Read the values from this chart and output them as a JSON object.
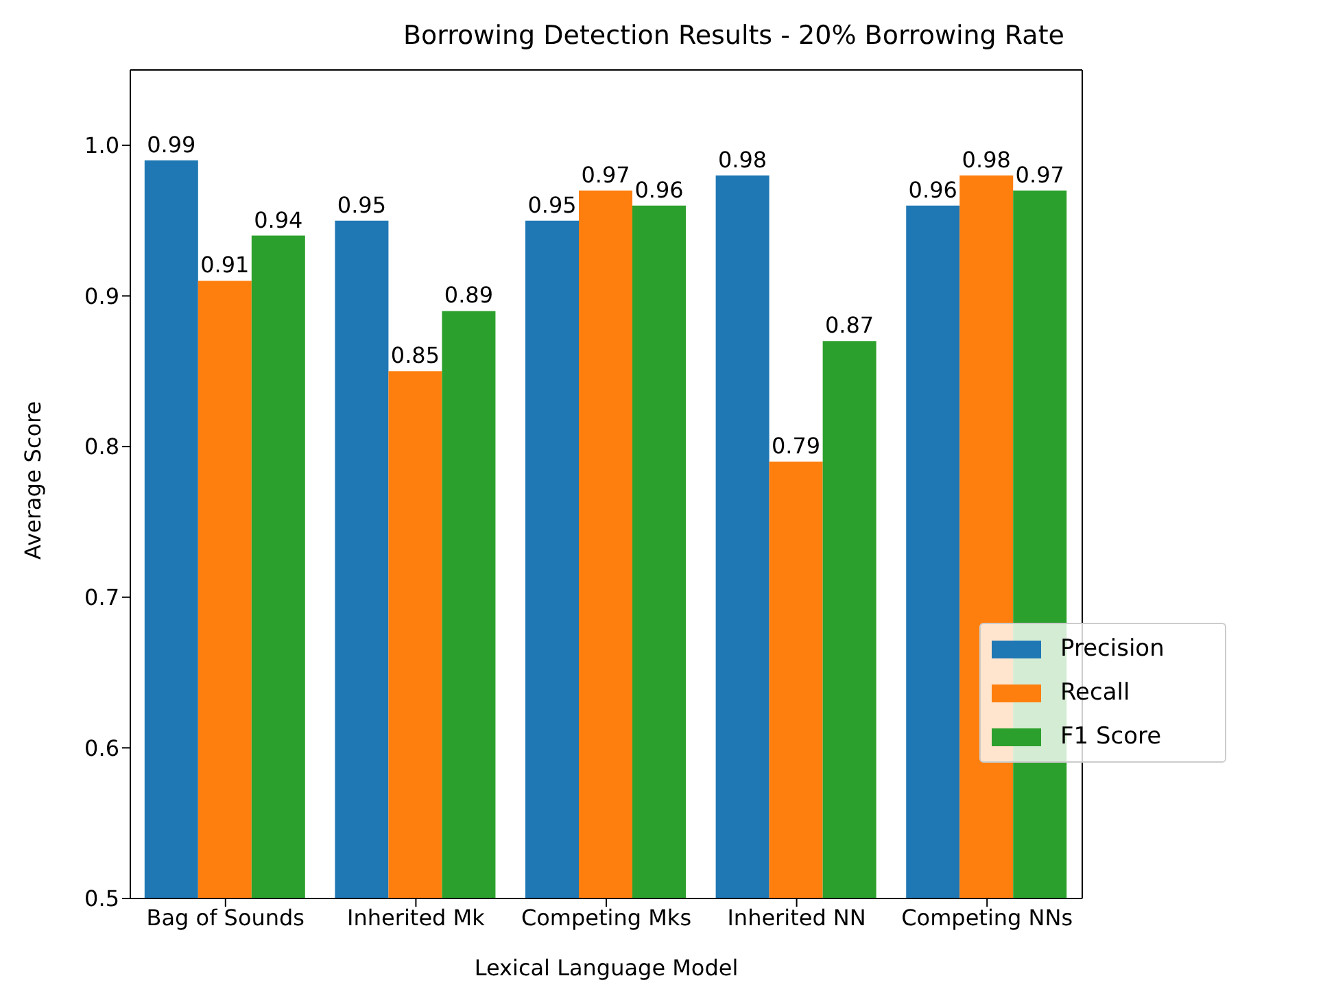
{
  "chart_data": {
    "type": "bar",
    "title": "Borrowing Detection Results - 20% Borrowing Rate",
    "xlabel": "Lexical Language Model",
    "ylabel": "Average Score",
    "categories": [
      "Bag of Sounds",
      "Inherited Mk",
      "Competing Mks",
      "Inherited NN",
      "Competing NNs"
    ],
    "series": [
      {
        "name": "Precision",
        "color": "#1f77b4",
        "values": [
          0.99,
          0.95,
          0.95,
          0.98,
          0.96
        ]
      },
      {
        "name": "Recall",
        "color": "#ff7f0e",
        "values": [
          0.91,
          0.85,
          0.97,
          0.79,
          0.98
        ]
      },
      {
        "name": "F1 Score",
        "color": "#2ca02c",
        "values": [
          0.94,
          0.89,
          0.96,
          0.87,
          0.97
        ]
      }
    ],
    "ylim": [
      0.5,
      1.05
    ],
    "yticks": [
      0.5,
      0.6,
      0.7,
      0.8,
      0.9,
      {
        "value": 1,
        "label": "1.0"
      }
    ],
    "data_labels": true,
    "grid": false,
    "legend": "right"
  }
}
